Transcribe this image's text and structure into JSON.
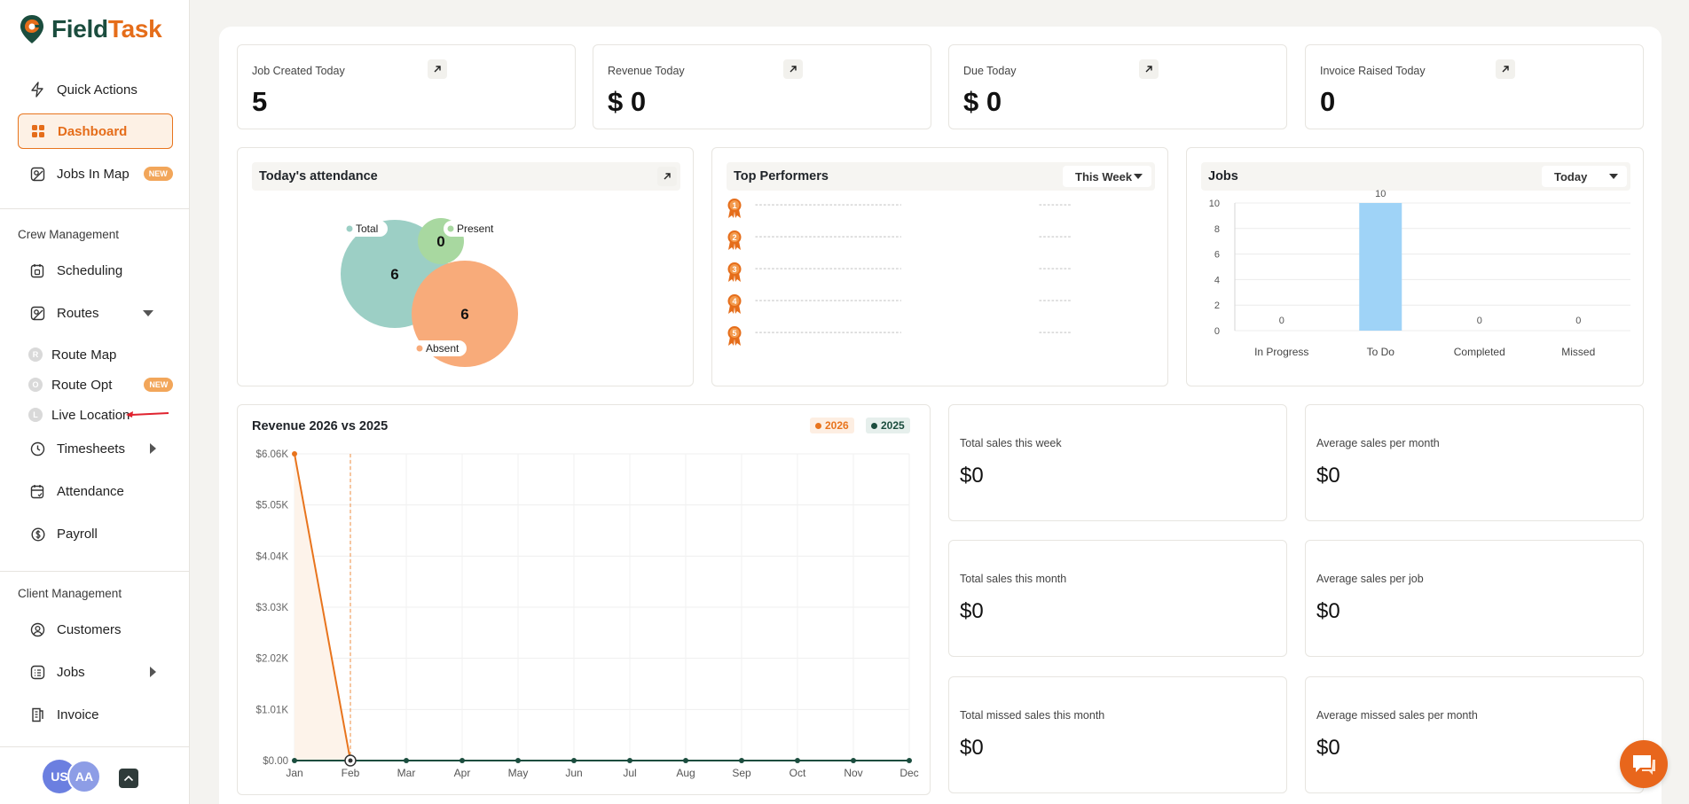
{
  "brand": {
    "name_part1": "Field",
    "name_part2": "Task",
    "color_green": "#1b4d3e",
    "color_orange": "#e56d1a"
  },
  "sidebar": {
    "quick_actions": "Quick Actions",
    "dashboard": "Dashboard",
    "jobs_in_map": "Jobs In Map",
    "new_badge": "NEW",
    "crew_section": "Crew Management",
    "scheduling": "Scheduling",
    "routes": "Routes",
    "route_map": "Route Map",
    "route_opt": "Route Opt",
    "live_location": "Live Location",
    "timesheets": "Timesheets",
    "attendance": "Attendance",
    "payroll": "Payroll",
    "client_section": "Client Management",
    "customers": "Customers",
    "jobs": "Jobs",
    "invoice": "Invoice",
    "avatars": [
      {
        "initials": "US",
        "color": "#6b7fe0"
      },
      {
        "initials": "AA",
        "color": "#8d9de6"
      }
    ]
  },
  "stats": [
    {
      "label": "Job Created Today",
      "value": "5"
    },
    {
      "label": "Revenue Today",
      "value": "$ 0"
    },
    {
      "label": "Due Today",
      "value": "$ 0"
    },
    {
      "label": "Invoice Raised Today",
      "value": "0"
    }
  ],
  "attendance": {
    "title": "Today's attendance",
    "total_label": "Total",
    "present_label": "Present",
    "absent_label": "Absent",
    "total_value": "6",
    "present_value": "0",
    "absent_value": "6",
    "colors": {
      "total": "#9ccfc5",
      "present": "#a8d8a0",
      "absent": "#f8ab7a"
    }
  },
  "top_performers": {
    "title": "Top Performers",
    "period": "This Week",
    "ranks": [
      "1",
      "2",
      "3",
      "4",
      "5"
    ],
    "name_placeholder": "--------------------------------------",
    "value_placeholder": "--------"
  },
  "jobs_chart": {
    "title": "Jobs",
    "period": "Today",
    "chart_data": {
      "type": "bar",
      "categories": [
        "In Progress",
        "To Do",
        "Completed",
        "Missed"
      ],
      "values": [
        0,
        10,
        0,
        0
      ],
      "yticks": [
        "0",
        "2",
        "4",
        "6",
        "8",
        "10"
      ],
      "ylim": [
        0,
        10
      ],
      "color": "#9fd3f7"
    }
  },
  "revenue_chart": {
    "title": "Revenue 2026 vs 2025",
    "legend_2026": "2026",
    "legend_2025": "2025",
    "color_2026": "#e8741d",
    "color_2025": "#1b4d3e",
    "chart_data": {
      "type": "line",
      "categories": [
        "Jan",
        "Feb",
        "Mar",
        "Apr",
        "May",
        "Jun",
        "Jul",
        "Aug",
        "Sep",
        "Oct",
        "Nov",
        "Dec"
      ],
      "yticks": [
        "$0.00",
        "$1.01K",
        "$2.02K",
        "$3.03K",
        "$4.04K",
        "$5.05K",
        "$6.06K"
      ],
      "ylim": [
        0,
        6060
      ],
      "series": [
        {
          "name": "2026",
          "values": [
            6060,
            0,
            null,
            null,
            null,
            null,
            null,
            null,
            null,
            null,
            null,
            null
          ]
        },
        {
          "name": "2025",
          "values": [
            0,
            0,
            0,
            0,
            0,
            0,
            0,
            0,
            0,
            0,
            0,
            0
          ]
        }
      ]
    }
  },
  "sales": [
    {
      "label": "Total sales this week",
      "value": "$0"
    },
    {
      "label": "Average sales per month",
      "value": "$0"
    },
    {
      "label": "Total sales this month",
      "value": "$0"
    },
    {
      "label": "Average sales per job",
      "value": "$0"
    },
    {
      "label": "Total missed sales this month",
      "value": "$0"
    },
    {
      "label": "Average missed sales per month",
      "value": "$0"
    }
  ]
}
